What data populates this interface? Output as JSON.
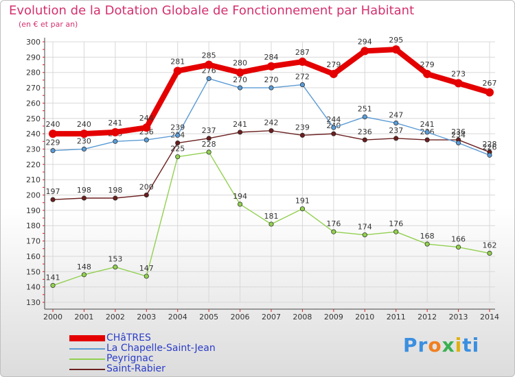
{
  "title": "Evolution de la Dotation Globale de Fonctionnement par Habitant",
  "subtitle": "(en € et par an)",
  "logo": "Proxiti",
  "chart_data": {
    "type": "line",
    "title": "Evolution de la Dotation Globale de Fonctionnement par Habitant",
    "ylabel": "(en € et par an)",
    "xlabel": "",
    "ylim": [
      130,
      300
    ],
    "yticks": [
      130,
      140,
      150,
      160,
      170,
      180,
      190,
      200,
      210,
      220,
      230,
      240,
      250,
      260,
      270,
      280,
      290,
      300
    ],
    "grid": true,
    "legend_position": "bottom-left",
    "x": [
      "2000",
      "2001",
      "2002",
      "2003",
      "2004",
      "2005",
      "2006",
      "2007",
      "2008",
      "2009",
      "2010",
      "2011",
      "2012",
      "2013",
      "2014"
    ],
    "series": [
      {
        "name": "CHâTRES",
        "color": "#e40000",
        "values": [
          240,
          240,
          241,
          244,
          281,
          285,
          280,
          284,
          287,
          279,
          294,
          295,
          279,
          273,
          267
        ]
      },
      {
        "name": "La Chapelle-Saint-Jean",
        "color": "#5b9bd5",
        "values": [
          229,
          230,
          235,
          236,
          239,
          276,
          270,
          270,
          272,
          244,
          251,
          247,
          241,
          234,
          226
        ]
      },
      {
        "name": "Peyrignac",
        "color": "#92d050",
        "values": [
          141,
          148,
          153,
          147,
          225,
          228,
          194,
          181,
          191,
          176,
          174,
          176,
          168,
          166,
          162
        ]
      },
      {
        "name": "Saint-Rabier",
        "color": "#6b1f1f",
        "values": [
          197,
          198,
          198,
          200,
          234,
          237,
          241,
          242,
          239,
          240,
          236,
          237,
          236,
          236,
          228
        ]
      }
    ]
  }
}
